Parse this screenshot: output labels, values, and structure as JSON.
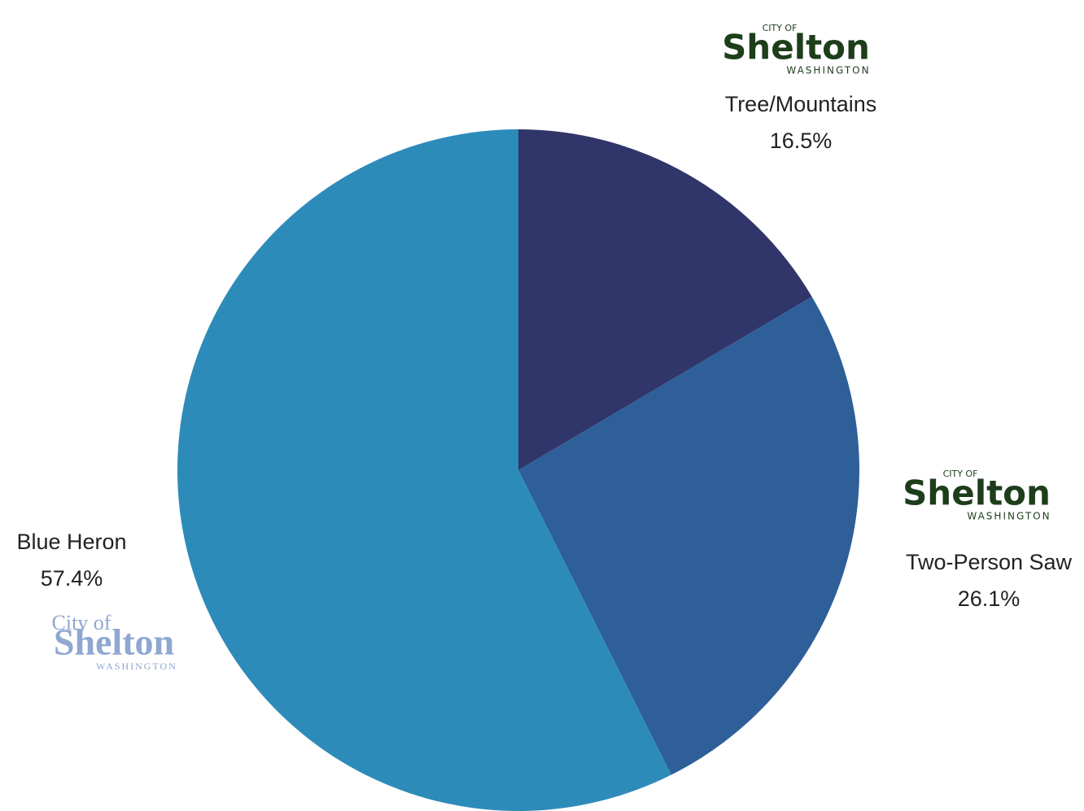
{
  "chart_data": {
    "type": "pie",
    "categories": [
      "Tree/Mountains",
      "Two-Person Saw",
      "Blue Heron"
    ],
    "values": [
      16.5,
      26.1,
      57.4
    ],
    "value_labels": [
      "16.5%",
      "26.1%",
      "57.4%"
    ],
    "colors": [
      "#30356a",
      "#2e5f98",
      "#2d8bb9"
    ],
    "logos": [
      {
        "top": "CITY OF",
        "name": "Shelton",
        "bottom": "WASHINGTON",
        "color": "#1d3d1b"
      },
      {
        "top": "CITY OF",
        "name": "Shelton",
        "bottom": "WASHINGTON",
        "color": "#1d3d1b"
      },
      {
        "top": "City of",
        "name": "Shelton",
        "bottom": "WASHINGTON",
        "color": "#8fa7d1"
      }
    ]
  }
}
